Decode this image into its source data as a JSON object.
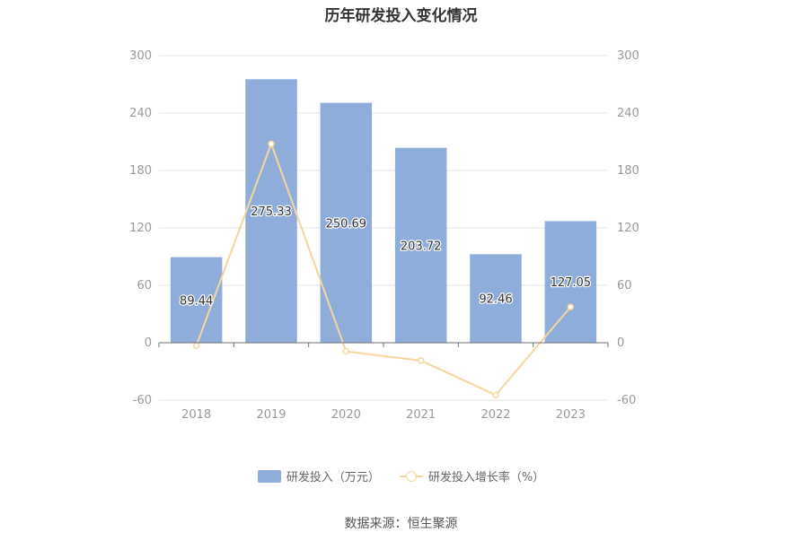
{
  "chart_data": {
    "type": "bar",
    "title": "历年研发投入变化情况",
    "categories": [
      "2018",
      "2019",
      "2020",
      "2021",
      "2022",
      "2023"
    ],
    "series": [
      {
        "name": "研发投入（万元）",
        "type": "bar",
        "axis": "left",
        "values": [
          89.44,
          275.33,
          250.69,
          203.72,
          92.46,
          127.05
        ],
        "labels": [
          "89.44",
          "275.33",
          "250.69",
          "203.72",
          "92.46",
          "127.05"
        ]
      },
      {
        "name": "研发投入增长率（%）",
        "type": "line",
        "axis": "right",
        "values": [
          -3,
          207.8,
          -9.0,
          -18.7,
          -54.6,
          37.4
        ]
      }
    ],
    "ylim_left": [
      -60,
      300
    ],
    "ylim_right": [
      -60,
      300
    ],
    "yticks_left": [
      "300",
      "240",
      "180",
      "120",
      "60",
      "0",
      "-60"
    ],
    "yticks_right": [
      "300",
      "240",
      "180",
      "120",
      "60",
      "0",
      "-60"
    ],
    "xlabel": "",
    "ylabel": "",
    "grid": true,
    "legend_position": "bottom-center",
    "colors": {
      "bar": "#8eaddb",
      "line": "#f7d59e",
      "grid": "#e6e6e6"
    }
  },
  "footer": {
    "source": "数据来源：恒生聚源"
  }
}
